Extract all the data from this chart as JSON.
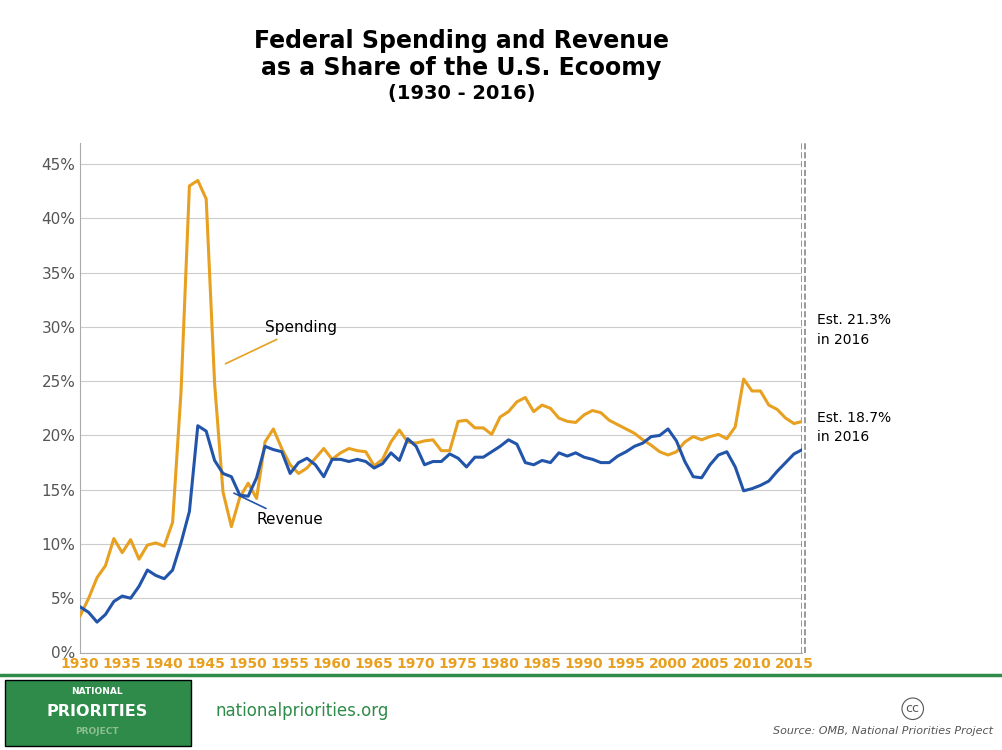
{
  "title_line1": "Federal Spending and Revenue",
  "title_line2": "as a Share of the U.S. Ecoomy",
  "title_line3": "(1930 - 2016)",
  "spending_color": "#E8A020",
  "revenue_color": "#2255AA",
  "background_color": "#FFFFFF",
  "footer_green": "#2E8B4A",
  "ylim": [
    0,
    0.47
  ],
  "yticks": [
    0.0,
    0.05,
    0.1,
    0.15,
    0.2,
    0.25,
    0.3,
    0.35,
    0.4,
    0.45
  ],
  "ytick_labels": [
    "0%",
    "5%",
    "10%",
    "15%",
    "20%",
    "25%",
    "30%",
    "35%",
    "40%",
    "45%"
  ],
  "xticks": [
    1930,
    1935,
    1940,
    1945,
    1950,
    1955,
    1960,
    1965,
    1970,
    1975,
    1980,
    1985,
    1990,
    1995,
    2000,
    2005,
    2010,
    2015
  ],
  "spending_annotation": "Spending",
  "revenue_annotation": "Revenue",
  "est_spending": "Est. 21.3%\nin 2016",
  "est_revenue": "Est. 18.7%\nin 2016",
  "source_text": "Source: OMB, National Priorities Project",
  "website_text": "nationalpriorities.org",
  "spending_data": {
    "1930": 3.4,
    "1931": 5.0,
    "1932": 6.9,
    "1933": 8.0,
    "1934": 10.5,
    "1935": 9.2,
    "1936": 10.4,
    "1937": 8.6,
    "1938": 9.9,
    "1939": 10.1,
    "1940": 9.8,
    "1941": 12.0,
    "1942": 24.0,
    "1943": 43.0,
    "1944": 43.5,
    "1945": 41.8,
    "1946": 24.8,
    "1947": 14.8,
    "1948": 11.6,
    "1949": 14.3,
    "1950": 15.6,
    "1951": 14.2,
    "1952": 19.4,
    "1953": 20.6,
    "1954": 18.8,
    "1955": 17.3,
    "1956": 16.5,
    "1957": 17.0,
    "1958": 17.9,
    "1959": 18.8,
    "1960": 17.8,
    "1961": 18.4,
    "1962": 18.8,
    "1963": 18.6,
    "1964": 18.5,
    "1965": 17.2,
    "1966": 17.8,
    "1967": 19.4,
    "1968": 20.5,
    "1969": 19.4,
    "1970": 19.3,
    "1971": 19.5,
    "1972": 19.6,
    "1973": 18.6,
    "1974": 18.6,
    "1975": 21.3,
    "1976": 21.4,
    "1977": 20.7,
    "1978": 20.7,
    "1979": 20.1,
    "1980": 21.7,
    "1981": 22.2,
    "1982": 23.1,
    "1983": 23.5,
    "1984": 22.2,
    "1985": 22.8,
    "1986": 22.5,
    "1987": 21.6,
    "1988": 21.3,
    "1989": 21.2,
    "1990": 21.9,
    "1991": 22.3,
    "1992": 22.1,
    "1993": 21.4,
    "1994": 21.0,
    "1995": 20.6,
    "1996": 20.2,
    "1997": 19.6,
    "1998": 19.1,
    "1999": 18.5,
    "2000": 18.2,
    "2001": 18.5,
    "2002": 19.4,
    "2003": 19.9,
    "2004": 19.6,
    "2005": 19.9,
    "2006": 20.1,
    "2007": 19.7,
    "2008": 20.8,
    "2009": 25.2,
    "2010": 24.1,
    "2011": 24.1,
    "2012": 22.8,
    "2013": 22.4,
    "2014": 21.6,
    "2015": 21.1,
    "2016": 21.3
  },
  "revenue_data": {
    "1930": 4.2,
    "1931": 3.7,
    "1932": 2.8,
    "1933": 3.5,
    "1934": 4.7,
    "1935": 5.2,
    "1936": 5.0,
    "1937": 6.1,
    "1938": 7.6,
    "1939": 7.1,
    "1940": 6.8,
    "1941": 7.6,
    "1942": 10.1,
    "1943": 13.0,
    "1944": 20.9,
    "1945": 20.4,
    "1946": 17.7,
    "1947": 16.5,
    "1948": 16.2,
    "1949": 14.5,
    "1950": 14.4,
    "1951": 16.1,
    "1952": 19.0,
    "1953": 18.7,
    "1954": 18.5,
    "1955": 16.5,
    "1956": 17.5,
    "1957": 17.9,
    "1958": 17.3,
    "1959": 16.2,
    "1960": 17.8,
    "1961": 17.8,
    "1962": 17.6,
    "1963": 17.8,
    "1964": 17.6,
    "1965": 17.0,
    "1966": 17.4,
    "1967": 18.4,
    "1968": 17.7,
    "1969": 19.7,
    "1970": 19.0,
    "1971": 17.3,
    "1972": 17.6,
    "1973": 17.6,
    "1974": 18.3,
    "1975": 17.9,
    "1976": 17.1,
    "1977": 18.0,
    "1978": 18.0,
    "1979": 18.5,
    "1980": 19.0,
    "1981": 19.6,
    "1982": 19.2,
    "1983": 17.5,
    "1984": 17.3,
    "1985": 17.7,
    "1986": 17.5,
    "1987": 18.4,
    "1988": 18.1,
    "1989": 18.4,
    "1990": 18.0,
    "1991": 17.8,
    "1992": 17.5,
    "1993": 17.5,
    "1994": 18.1,
    "1995": 18.5,
    "1996": 19.0,
    "1997": 19.3,
    "1998": 19.9,
    "1999": 20.0,
    "2000": 20.6,
    "2001": 19.5,
    "2002": 17.6,
    "2003": 16.2,
    "2004": 16.1,
    "2005": 17.3,
    "2006": 18.2,
    "2007": 18.5,
    "2008": 17.1,
    "2009": 14.9,
    "2010": 15.1,
    "2011": 15.4,
    "2012": 15.8,
    "2013": 16.7,
    "2014": 17.5,
    "2015": 18.3,
    "2016": 18.7
  }
}
